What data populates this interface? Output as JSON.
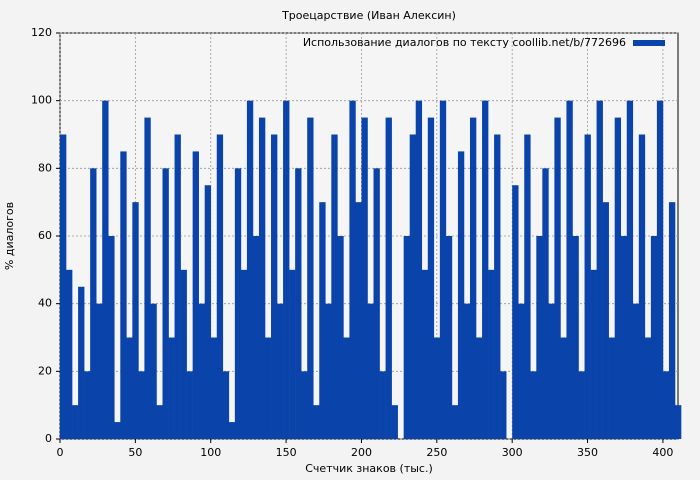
{
  "chart_data": {
    "type": "bar",
    "title": "Троецарствие (Иван Алексин)",
    "xlabel": "Счетчик знаков (тыс.)",
    "ylabel": "% диалогов",
    "legend": "top-right",
    "grid": true,
    "xlim": [
      0,
      410
    ],
    "ylim": [
      0,
      120
    ],
    "xticks": [
      0,
      50,
      100,
      150,
      200,
      250,
      300,
      350,
      400
    ],
    "yticks": [
      0,
      20,
      40,
      60,
      80,
      100,
      120
    ],
    "x": [
      0,
      4,
      8,
      12,
      16,
      20,
      24,
      28,
      32,
      36,
      40,
      44,
      48,
      52,
      56,
      60,
      64,
      68,
      72,
      76,
      80,
      84,
      88,
      92,
      96,
      100,
      104,
      108,
      112,
      116,
      120,
      124,
      128,
      132,
      136,
      140,
      144,
      148,
      152,
      156,
      160,
      164,
      168,
      172,
      176,
      180,
      184,
      188,
      192,
      196,
      200,
      204,
      208,
      212,
      216,
      220,
      224,
      228,
      232,
      236,
      240,
      244,
      248,
      252,
      256,
      260,
      264,
      268,
      272,
      276,
      280,
      284,
      288,
      292,
      296,
      300,
      304,
      308,
      312,
      316,
      320,
      324,
      328,
      332,
      336,
      340,
      344,
      348,
      352,
      356,
      360,
      364,
      368,
      372,
      376,
      380,
      384,
      388,
      392,
      396,
      400,
      404,
      408
    ],
    "series": [
      {
        "name": "Использование диалогов по тексту coollib.net/b/772696",
        "color": "#0a44aa",
        "values": [
          90,
          50,
          10,
          45,
          20,
          80,
          40,
          100,
          60,
          5,
          85,
          30,
          70,
          20,
          95,
          40,
          10,
          80,
          30,
          90,
          50,
          20,
          85,
          40,
          75,
          30,
          90,
          20,
          5,
          80,
          50,
          100,
          60,
          95,
          30,
          90,
          40,
          100,
          50,
          80,
          20,
          95,
          10,
          70,
          40,
          90,
          60,
          30,
          100,
          70,
          95,
          40,
          80,
          20,
          95,
          10,
          0,
          60,
          90,
          100,
          50,
          95,
          30,
          100,
          60,
          10,
          85,
          40,
          95,
          30,
          100,
          50,
          90,
          20,
          0,
          75,
          40,
          90,
          20,
          60,
          80,
          40,
          95,
          30,
          100,
          60,
          20,
          90,
          50,
          100,
          70,
          30,
          95,
          60,
          100,
          40,
          90,
          30,
          60,
          100,
          20,
          70,
          10
        ]
      }
    ]
  }
}
